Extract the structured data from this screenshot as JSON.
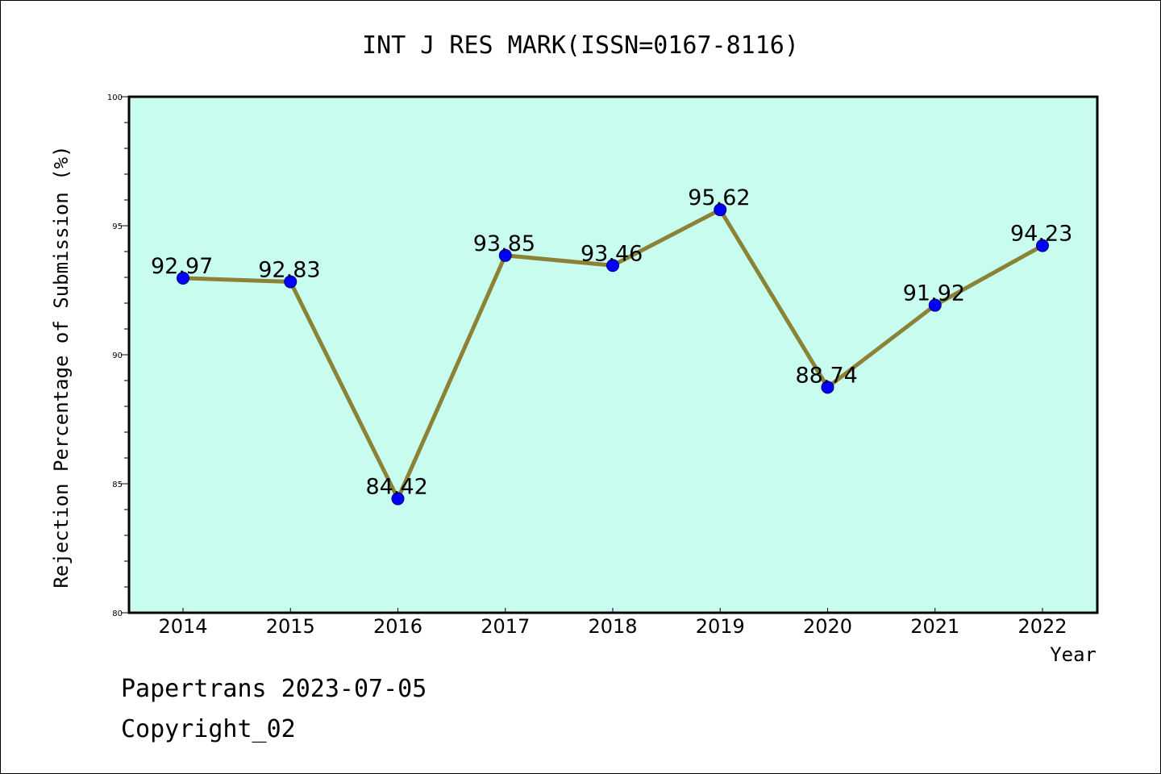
{
  "chart_data": {
    "type": "line",
    "title": "INT J RES MARK(ISSN=0167-8116)",
    "xlabel": "Year",
    "ylabel": "Rejection Percentage of Submission (%)",
    "categories": [
      "2014",
      "2015",
      "2016",
      "2017",
      "2018",
      "2019",
      "2020",
      "2021",
      "2022"
    ],
    "values": [
      92.97,
      92.83,
      84.42,
      93.85,
      93.46,
      95.62,
      88.74,
      91.92,
      94.23
    ],
    "data_labels": [
      "92.97",
      "92.83",
      "84.42",
      "93.85",
      "93.46",
      "95.62",
      "88.74",
      "91.92",
      "94.23"
    ],
    "ylim": [
      80,
      100
    ],
    "y_ticks": [
      "80",
      "85",
      "90",
      "95",
      "100"
    ],
    "grid": false,
    "colors": {
      "plot_background": "#c8fcee",
      "line": "#8b8236",
      "marker": "#0000ff"
    }
  },
  "footer": {
    "source": "Papertrans 2023-07-05",
    "copyright": "Copyright_02"
  }
}
